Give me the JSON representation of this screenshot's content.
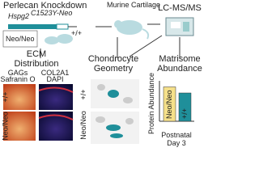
{
  "header": {
    "title": "Perlecan Knockdown",
    "gene": "Hspg2",
    "allele": "C1523Y-Neo",
    "wt": "+/+",
    "mut": "Neo/Neo"
  },
  "steps": [
    {
      "label": "Murine Cartilage"
    },
    {
      "label": "LC-MS/MS"
    }
  ],
  "panels": [
    {
      "title": [
        "ECM",
        "Distribution"
      ],
      "stains": [
        {
          "lines": [
            "GAGs",
            "Safranin O"
          ]
        },
        {
          "lines": [
            "COL2A1",
            "DAPI"
          ]
        }
      ],
      "rows": [
        "+/+",
        "Neo/Neo"
      ]
    },
    {
      "title": [
        "Chondrocyte",
        "Geometry"
      ],
      "rows": [
        "+/+",
        "Neo/Neo"
      ]
    },
    {
      "title": [
        "Matrisome",
        "Abundance"
      ]
    }
  ],
  "chart_data": {
    "type": "bar",
    "y_label": "Protein Abundance",
    "x_label": [
      "Postnatal",
      "Day 3"
    ],
    "categories": [
      "Neo/Neo",
      "+/+"
    ],
    "values": [
      0.85,
      0.7
    ],
    "colors": [
      "#f5e08a",
      "#1f8f9a"
    ],
    "ylim": [
      0,
      1
    ]
  }
}
